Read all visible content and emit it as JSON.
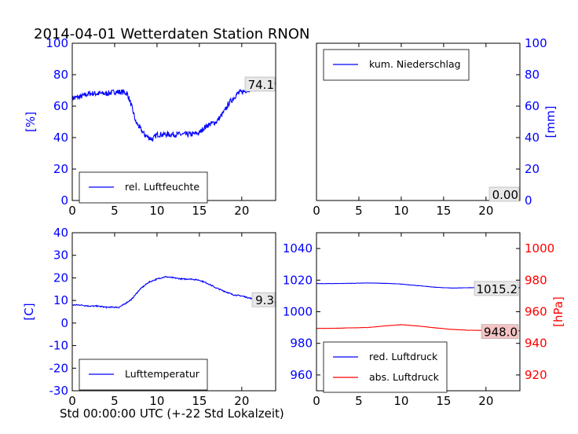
{
  "figure": {
    "title": "2014-04-01 Wetterdaten Station RNON",
    "xlabel": "Std 00:00:00 UTC (+-22 Std Lokalzeit)"
  },
  "colors": {
    "blue": "#0000ff",
    "red": "#ff0000",
    "black": "#000000",
    "last_box_grey": "#e8e8e8",
    "last_box_red": "#f4c4c4"
  },
  "chart_data": [
    {
      "id": "humidity",
      "type": "line",
      "ylabel": "[%]",
      "xlim": [
        0,
        24
      ],
      "ylim": [
        0,
        100
      ],
      "xticks": [
        0,
        5,
        10,
        15,
        20
      ],
      "yticks": [
        0,
        20,
        40,
        60,
        80,
        100
      ],
      "y_axis_side": "left",
      "legend_position": "lower-left",
      "series": [
        {
          "name": "rel. Luftfeuchte",
          "color": "#0000ff",
          "x": [
            0,
            1,
            2,
            3,
            4,
            5,
            6,
            6.5,
            7,
            7.5,
            8,
            8.5,
            9,
            9.5,
            10,
            11,
            12,
            13,
            14,
            15,
            15.5,
            16,
            17,
            18,
            18.5,
            19,
            19.5,
            20,
            21,
            22,
            23,
            24
          ],
          "y": [
            65,
            66,
            68,
            68,
            68,
            69,
            69,
            68,
            60,
            50,
            46,
            42,
            40,
            39,
            42,
            42,
            42,
            42,
            42,
            43,
            46,
            48,
            50,
            57,
            62,
            65,
            68,
            69,
            71,
            72,
            74,
            74
          ]
        }
      ],
      "last_value_label": "74.1"
    },
    {
      "id": "precipitation",
      "type": "line",
      "ylabel": "[mm]",
      "xlim": [
        0,
        24
      ],
      "ylim": [
        0,
        100
      ],
      "xticks": [
        0,
        5,
        10,
        15,
        20
      ],
      "yticks": [
        0,
        20,
        40,
        60,
        80,
        100
      ],
      "y_axis_side": "right",
      "legend_position": "upper-left",
      "series": [
        {
          "name": "kum. Niederschlag",
          "color": "#0000ff",
          "x": [
            0,
            24
          ],
          "y": [
            0,
            0
          ]
        }
      ],
      "last_value_label": "0.00"
    },
    {
      "id": "temperature",
      "type": "line",
      "ylabel": "[C]",
      "xlim": [
        0,
        24
      ],
      "ylim": [
        -30,
        40
      ],
      "xticks": [
        0,
        5,
        10,
        15,
        20
      ],
      "yticks": [
        -30,
        -20,
        -10,
        0,
        10,
        20,
        30,
        40
      ],
      "y_axis_side": "left",
      "legend_position": "lower-left",
      "series": [
        {
          "name": "Lufttemperatur",
          "color": "#0000ff",
          "x": [
            0,
            1,
            2,
            3,
            4,
            5,
            5.5,
            6,
            7,
            8,
            9,
            10,
            11,
            12,
            13,
            14,
            15,
            16,
            17,
            18,
            19,
            20,
            21,
            22,
            23,
            24
          ],
          "y": [
            8,
            8,
            7.5,
            7.5,
            7,
            7,
            7,
            8,
            10.5,
            15,
            18,
            19.5,
            20.5,
            20,
            19.5,
            19.5,
            19,
            17.5,
            15.5,
            14,
            12.5,
            12,
            11,
            10,
            9.5,
            9.3
          ]
        }
      ],
      "last_value_label": "9.3"
    },
    {
      "id": "pressure",
      "type": "line",
      "xlim": [
        0,
        24
      ],
      "xticks": [
        0,
        5,
        10,
        15,
        20
      ],
      "left_axis": {
        "ylim": [
          950,
          1050
        ],
        "yticks": [
          960,
          980,
          1000,
          1020,
          1040
        ],
        "color": "#0000ff"
      },
      "right_axis": {
        "ylabel": "[hPa]",
        "ylim": [
          910,
          1010
        ],
        "yticks": [
          920,
          940,
          960,
          980,
          1000
        ],
        "color": "#ff0000"
      },
      "legend_position": "lower-left",
      "series": [
        {
          "name": "red. Luftdruck",
          "color": "#0000ff",
          "axis": "left",
          "x": [
            0,
            2,
            4,
            6,
            8,
            10,
            12,
            14,
            16,
            18,
            20,
            22,
            24
          ],
          "y": [
            1017.8,
            1017.8,
            1018,
            1018.2,
            1018,
            1017.5,
            1016.5,
            1015.5,
            1015,
            1015.2,
            1015.5,
            1015.3,
            1015.2
          ]
        },
        {
          "name": "abs. Luftdruck",
          "color": "#ff0000",
          "axis": "right",
          "x": [
            0,
            2,
            4,
            6,
            8,
            10,
            12,
            14,
            16,
            18,
            20,
            22,
            24
          ],
          "y": [
            949.5,
            949.5,
            949.8,
            950,
            951,
            951.8,
            951,
            949.8,
            948.8,
            948.3,
            948.2,
            948.1,
            948.0
          ]
        }
      ],
      "last_value_label_left": "1015.2",
      "last_value_label_right": "948.0"
    }
  ]
}
